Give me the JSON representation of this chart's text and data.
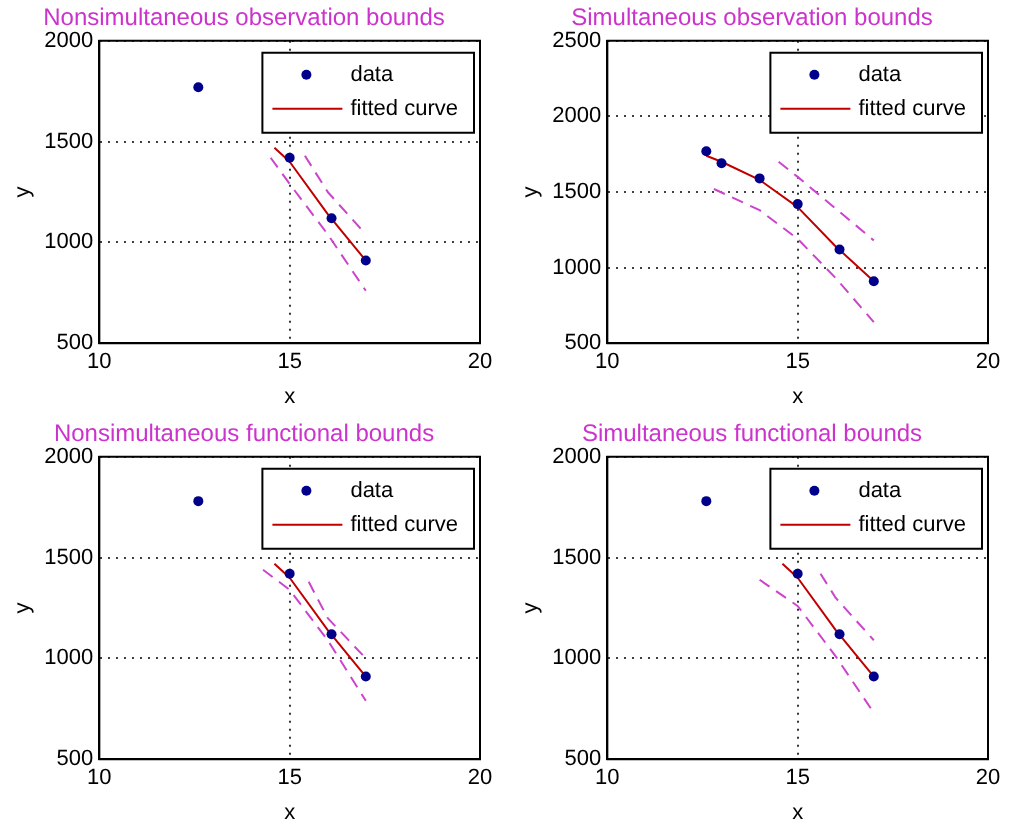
{
  "chart_data": [
    {
      "type": "line",
      "title": "Nonsimultaneous observation bounds",
      "xlabel": "x",
      "ylabel": "y",
      "xlim": [
        10,
        20
      ],
      "xticks": [
        10,
        15,
        20
      ],
      "ylim": [
        500,
        2000
      ],
      "yticks": [
        500,
        1000,
        1500,
        2000
      ],
      "grid": true,
      "legend": "top right",
      "series": [
        {
          "name": "data",
          "type": "scatter",
          "marker": "circle",
          "color": "#00008b",
          "x": [
            12.6,
            13,
            14,
            15,
            16.1,
            17
          ],
          "values": [
            1770,
            null,
            null,
            1420,
            1120,
            910
          ]
        },
        {
          "name": "fitted curve",
          "type": "line",
          "color": "#c00000",
          "x": [
            14.6,
            15,
            16,
            17
          ],
          "values": [
            1470,
            1400,
            1140,
            910
          ]
        },
        {
          "type": "line",
          "line_style": "dashed",
          "color": "#cc44cc",
          "x": [
            15.4,
            16,
            17
          ],
          "values": [
            1430,
            1250,
            1040
          ]
        },
        {
          "type": "line",
          "line_style": "dashed",
          "color": "#cc44cc",
          "x": [
            14.5,
            15,
            16,
            17
          ],
          "values": [
            1420,
            1290,
            1040,
            760
          ]
        }
      ]
    },
    {
      "type": "line",
      "title": "Simultaneous observation bounds",
      "xlabel": "x",
      "ylabel": "y",
      "xlim": [
        10,
        20
      ],
      "xticks": [
        10,
        15,
        20
      ],
      "ylim": [
        500,
        2500
      ],
      "yticks": [
        500,
        1000,
        1500,
        2000,
        2500
      ],
      "grid": true,
      "legend": "top right",
      "series": [
        {
          "name": "data",
          "type": "scatter",
          "marker": "circle",
          "color": "#00008b",
          "x": [
            12.6,
            13,
            14,
            15,
            16.1,
            17
          ],
          "values": [
            1770,
            1690,
            1590,
            1420,
            1120,
            910
          ]
        },
        {
          "name": "fitted curve",
          "type": "line",
          "color": "#c00000",
          "x": [
            12.6,
            13,
            14,
            15,
            16,
            17
          ],
          "values": [
            1740,
            1700,
            1580,
            1400,
            1140,
            910
          ]
        },
        {
          "type": "line",
          "line_style": "dashed",
          "color": "#cc44cc",
          "x": [
            14.5,
            15,
            16,
            17
          ],
          "values": [
            1700,
            1600,
            1390,
            1180
          ]
        },
        {
          "type": "line",
          "line_style": "dashed",
          "color": "#cc44cc",
          "x": [
            12.8,
            14,
            15,
            16,
            17
          ],
          "values": [
            1520,
            1380,
            1190,
            930,
            640
          ]
        }
      ]
    },
    {
      "type": "line",
      "title": "Nonsimultaneous functional bounds",
      "xlabel": "x",
      "ylabel": "y",
      "xlim": [
        10,
        20
      ],
      "xticks": [
        10,
        15,
        20
      ],
      "ylim": [
        500,
        2000
      ],
      "yticks": [
        500,
        1000,
        1500,
        2000
      ],
      "grid": true,
      "legend": "top right",
      "series": [
        {
          "name": "data",
          "type": "scatter",
          "marker": "circle",
          "color": "#00008b",
          "x": [
            12.6,
            13,
            14,
            15,
            16.1,
            17
          ],
          "values": [
            1780,
            null,
            null,
            1420,
            1120,
            910
          ]
        },
        {
          "name": "fitted curve",
          "type": "line",
          "color": "#c00000",
          "x": [
            14.6,
            15,
            16,
            17
          ],
          "values": [
            1470,
            1400,
            1140,
            910
          ]
        },
        {
          "type": "line",
          "line_style": "dashed",
          "color": "#cc44cc",
          "x": [
            15.5,
            16,
            17
          ],
          "values": [
            1380,
            1200,
            1000
          ]
        },
        {
          "type": "line",
          "line_style": "dashed",
          "color": "#cc44cc",
          "x": [
            14.3,
            15,
            16,
            17
          ],
          "values": [
            1440,
            1340,
            1090,
            790
          ]
        }
      ]
    },
    {
      "type": "line",
      "title": "Simultaneous functional bounds",
      "xlabel": "x",
      "ylabel": "y",
      "xlim": [
        10,
        20
      ],
      "xticks": [
        10,
        15,
        20
      ],
      "ylim": [
        500,
        2000
      ],
      "yticks": [
        500,
        1000,
        1500,
        2000
      ],
      "grid": true,
      "legend": "top right",
      "series": [
        {
          "name": "data",
          "type": "scatter",
          "marker": "circle",
          "color": "#00008b",
          "x": [
            12.6,
            13,
            14,
            15,
            16.1,
            17
          ],
          "values": [
            1780,
            null,
            null,
            1420,
            1120,
            910
          ]
        },
        {
          "name": "fitted curve",
          "type": "line",
          "color": "#c00000",
          "x": [
            14.6,
            15,
            16,
            17
          ],
          "values": [
            1470,
            1400,
            1140,
            910
          ]
        },
        {
          "type": "line",
          "line_style": "dashed",
          "color": "#cc44cc",
          "x": [
            15.6,
            16,
            17
          ],
          "values": [
            1420,
            1300,
            1090
          ]
        },
        {
          "type": "line",
          "line_style": "dashed",
          "color": "#cc44cc",
          "x": [
            14,
            15,
            16,
            17
          ],
          "values": [
            1390,
            1260,
            1010,
            730
          ]
        }
      ]
    }
  ]
}
